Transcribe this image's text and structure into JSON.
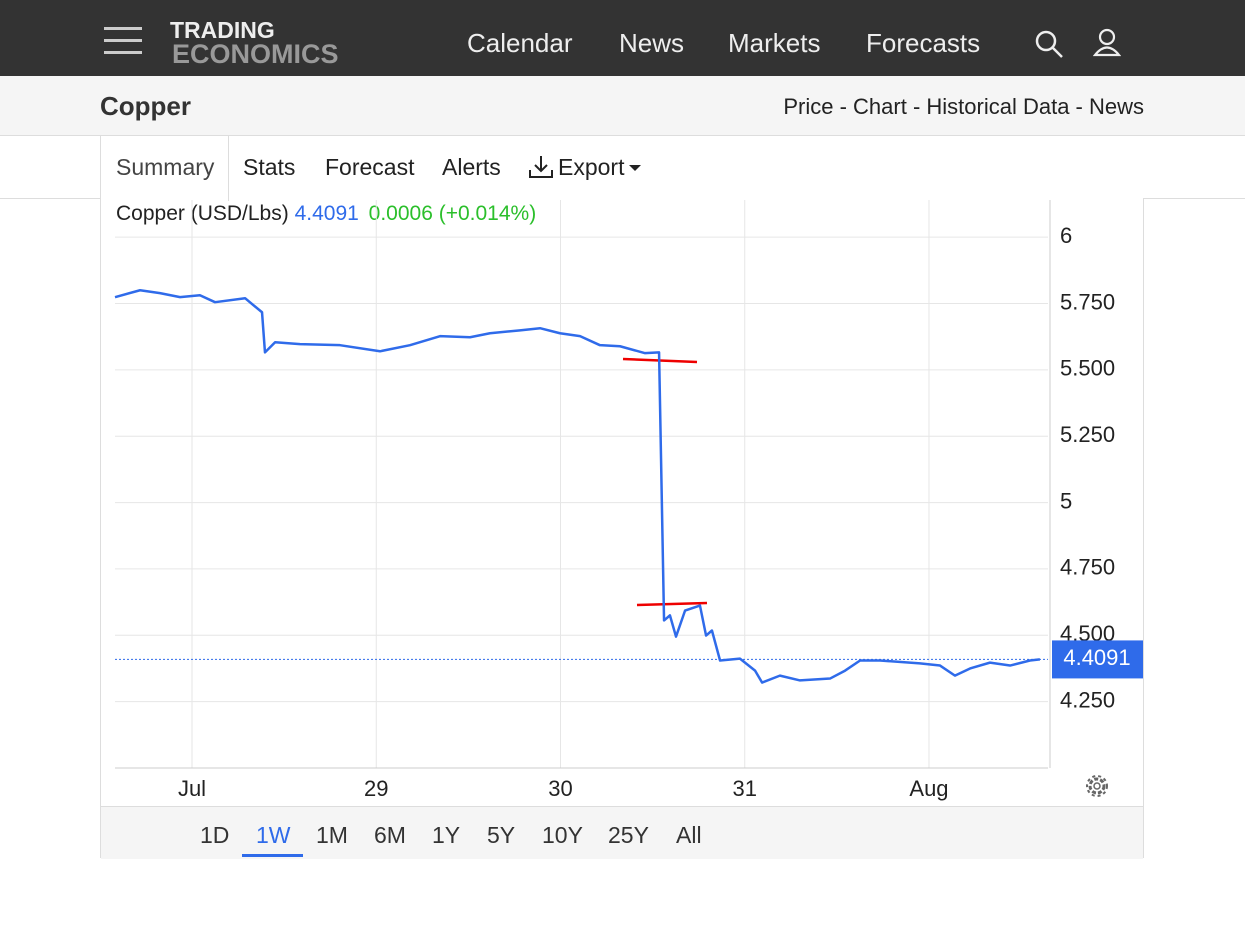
{
  "nav": {
    "logo_top": "TRADING",
    "logo_bottom": "ECONOMICS",
    "items": [
      "Calendar",
      "News",
      "Markets",
      "Forecasts"
    ]
  },
  "header": {
    "title": "Copper",
    "links": "Price - Chart - Historical Data - News"
  },
  "tabs": [
    "Summary",
    "Stats",
    "Forecast",
    "Alerts",
    "Export"
  ],
  "quote": {
    "name": "Copper (USD/Lbs)",
    "price": "4.4091",
    "change": "0.0006",
    "change_pct": "(+0.014%)"
  },
  "ranges": [
    "1D",
    "1W",
    "1M",
    "6M",
    "1Y",
    "5Y",
    "10Y",
    "25Y",
    "All"
  ],
  "active_range": "1W",
  "chart_data": {
    "type": "line",
    "color": "#2f6bea",
    "grid": true,
    "x": [
      -0.418,
      -0.282,
      -0.174,
      -0.065,
      0.043,
      0.125,
      0.288,
      0.38,
      0.396,
      0.451,
      0.586,
      0.803,
      1.02,
      1.183,
      1.346,
      1.509,
      1.617,
      1.78,
      1.889,
      1.997,
      2.106,
      2.214,
      2.323,
      2.459,
      2.535,
      2.562,
      2.594,
      2.627,
      2.676,
      2.757,
      2.79,
      2.822,
      2.866,
      2.974,
      3.056,
      3.094,
      3.191,
      3.3,
      3.463,
      3.545,
      3.626,
      3.734,
      3.951,
      4.06,
      4.141,
      4.223,
      4.331,
      4.44,
      4.548,
      4.602
    ],
    "series": [
      {
        "name": "Copper",
        "values": [
          5.774,
          5.8,
          5.789,
          5.774,
          5.781,
          5.755,
          5.77,
          5.717,
          5.566,
          5.604,
          5.597,
          5.593,
          5.57,
          5.593,
          5.627,
          5.623,
          5.638,
          5.649,
          5.657,
          5.638,
          5.627,
          5.593,
          5.589,
          5.563,
          5.566,
          4.556,
          4.575,
          4.495,
          4.593,
          4.612,
          4.499,
          4.518,
          4.405,
          4.412,
          4.367,
          4.322,
          4.348,
          4.33,
          4.337,
          4.367,
          4.405,
          4.405,
          4.394,
          4.386,
          4.348,
          4.375,
          4.397,
          4.386,
          4.405,
          4.4091
        ]
      }
    ],
    "last_value": 4.4091,
    "xlim": [
      -0.418,
      4.646
    ],
    "xticks": [
      {
        "value": 0,
        "label": "Jul"
      },
      {
        "value": 1,
        "label": "29"
      },
      {
        "value": 2,
        "label": "30"
      },
      {
        "value": 3,
        "label": "31"
      },
      {
        "value": 4,
        "label": "Aug"
      }
    ],
    "ylim": [
      4,
      6.14
    ],
    "yticks": [
      6,
      {
        "value": 5.75,
        "label": "5.750"
      },
      {
        "value": 5.5,
        "label": "5.500"
      },
      {
        "value": 5.25,
        "label": "5.250"
      },
      5,
      {
        "value": 4.75,
        "label": "4.750"
      },
      {
        "value": 4.5,
        "label": "4.500"
      },
      {
        "value": 4.25,
        "label": "4.250"
      }
    ]
  }
}
